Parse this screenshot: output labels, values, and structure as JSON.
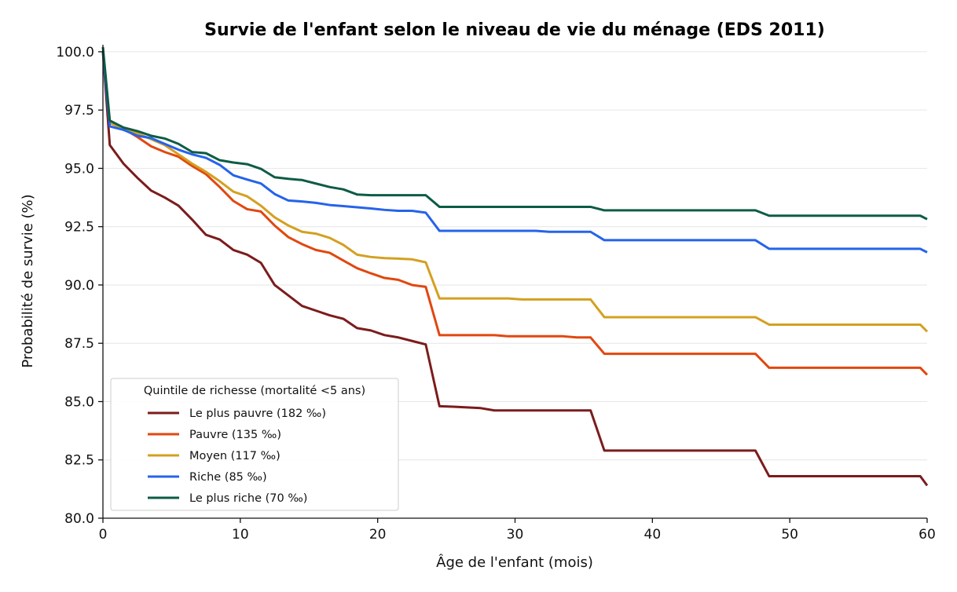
{
  "chart_data": {
    "type": "line",
    "title": "Survie de l'enfant selon le niveau de vie du ménage (EDS 2011)",
    "xlabel": "Âge de l'enfant (mois)",
    "ylabel": "Probabilité de survie (%)",
    "xlim": [
      0,
      60
    ],
    "ylim": [
      80,
      100.3
    ],
    "x_ticks": [
      0,
      10,
      20,
      30,
      40,
      50,
      60
    ],
    "x_tick_labels": [
      "0",
      "10",
      "20",
      "30",
      "40",
      "50",
      "60"
    ],
    "y_ticks": [
      80,
      82.5,
      85,
      87.5,
      90,
      92.5,
      95,
      97.5,
      100
    ],
    "y_tick_labels": [
      "80.0",
      "82.5",
      "85.0",
      "87.5",
      "90.0",
      "92.5",
      "95.0",
      "97.5",
      "100.0"
    ],
    "grid": "horizontal",
    "legend": {
      "title": "Quintile de richesse (mortalité <5 ans)",
      "placement": "lower-left"
    },
    "series": [
      {
        "name": "Le plus pauvre (182 ‰)",
        "color": "#7b1c1c",
        "points": [
          [
            0,
            100
          ],
          [
            0.5,
            96.0
          ],
          [
            1.5,
            95.2
          ],
          [
            2.5,
            94.6
          ],
          [
            3.5,
            94.05
          ],
          [
            4.5,
            93.75
          ],
          [
            5.5,
            93.4
          ],
          [
            6.5,
            92.8
          ],
          [
            7.5,
            92.15
          ],
          [
            8.5,
            91.95
          ],
          [
            9.5,
            91.5
          ],
          [
            10.5,
            91.3
          ],
          [
            11.5,
            90.95
          ],
          [
            12.5,
            90.0
          ],
          [
            13.5,
            89.55
          ],
          [
            14.5,
            89.1
          ],
          [
            15.5,
            88.9
          ],
          [
            16.5,
            88.7
          ],
          [
            17.5,
            88.55
          ],
          [
            18.5,
            88.15
          ],
          [
            19.5,
            88.05
          ],
          [
            20.5,
            87.85
          ],
          [
            21.5,
            87.75
          ],
          [
            22.5,
            87.6
          ],
          [
            23.5,
            87.45
          ],
          [
            24.5,
            84.8
          ],
          [
            25.5,
            84.78
          ],
          [
            26.5,
            84.75
          ],
          [
            27.5,
            84.72
          ],
          [
            28.5,
            84.62
          ],
          [
            29.5,
            84.62
          ],
          [
            30.5,
            84.62
          ],
          [
            35.5,
            84.62
          ],
          [
            36.5,
            82.9
          ],
          [
            47.5,
            82.9
          ],
          [
            48.5,
            81.8
          ],
          [
            59.5,
            81.8
          ],
          [
            60,
            81.4
          ]
        ]
      },
      {
        "name": "Pauvre (135 ‰)",
        "color": "#e2470f",
        "points": [
          [
            0,
            100
          ],
          [
            0.5,
            96.95
          ],
          [
            1.5,
            96.7
          ],
          [
            2.5,
            96.35
          ],
          [
            3.5,
            95.95
          ],
          [
            4.5,
            95.7
          ],
          [
            5.5,
            95.5
          ],
          [
            6.5,
            95.1
          ],
          [
            7.5,
            94.75
          ],
          [
            8.5,
            94.2
          ],
          [
            9.5,
            93.6
          ],
          [
            10.5,
            93.25
          ],
          [
            11.5,
            93.15
          ],
          [
            12.5,
            92.55
          ],
          [
            13.5,
            92.05
          ],
          [
            14.5,
            91.75
          ],
          [
            15.5,
            91.5
          ],
          [
            16.5,
            91.38
          ],
          [
            17.5,
            91.05
          ],
          [
            18.5,
            90.72
          ],
          [
            19.5,
            90.5
          ],
          [
            20.5,
            90.3
          ],
          [
            21.5,
            90.22
          ],
          [
            22.5,
            90.0
          ],
          [
            23.5,
            89.92
          ],
          [
            24.5,
            87.85
          ],
          [
            25.5,
            87.85
          ],
          [
            28.5,
            87.85
          ],
          [
            29.5,
            87.8
          ],
          [
            33.5,
            87.8
          ],
          [
            34.5,
            87.75
          ],
          [
            35.5,
            87.75
          ],
          [
            36.5,
            87.05
          ],
          [
            47.5,
            87.05
          ],
          [
            48.5,
            86.45
          ],
          [
            59.5,
            86.45
          ],
          [
            60,
            86.15
          ]
        ]
      },
      {
        "name": "Moyen (117 ‰)",
        "color": "#d4a021",
        "points": [
          [
            0,
            100
          ],
          [
            0.5,
            96.95
          ],
          [
            1.5,
            96.7
          ],
          [
            2.5,
            96.5
          ],
          [
            3.5,
            96.25
          ],
          [
            4.5,
            96.0
          ],
          [
            5.5,
            95.6
          ],
          [
            6.5,
            95.2
          ],
          [
            7.5,
            94.85
          ],
          [
            8.5,
            94.45
          ],
          [
            9.5,
            94.0
          ],
          [
            10.5,
            93.8
          ],
          [
            11.5,
            93.4
          ],
          [
            12.5,
            92.9
          ],
          [
            13.5,
            92.55
          ],
          [
            14.5,
            92.28
          ],
          [
            15.5,
            92.2
          ],
          [
            16.5,
            92.02
          ],
          [
            17.5,
            91.72
          ],
          [
            18.5,
            91.3
          ],
          [
            19.5,
            91.2
          ],
          [
            20.5,
            91.15
          ],
          [
            21.5,
            91.13
          ],
          [
            22.5,
            91.1
          ],
          [
            23.5,
            90.97
          ],
          [
            24.5,
            89.42
          ],
          [
            29.5,
            89.42
          ],
          [
            30.5,
            89.38
          ],
          [
            35.5,
            89.38
          ],
          [
            36.5,
            88.62
          ],
          [
            47.5,
            88.62
          ],
          [
            48.5,
            88.3
          ],
          [
            59.5,
            88.3
          ],
          [
            60,
            88.0
          ]
        ]
      },
      {
        "name": "Riche (85 ‰)",
        "color": "#2563eb",
        "points": [
          [
            0,
            100
          ],
          [
            0.5,
            96.8
          ],
          [
            1.5,
            96.65
          ],
          [
            2.5,
            96.4
          ],
          [
            3.5,
            96.3
          ],
          [
            4.5,
            96.05
          ],
          [
            5.5,
            95.8
          ],
          [
            6.5,
            95.6
          ],
          [
            7.5,
            95.45
          ],
          [
            8.5,
            95.15
          ],
          [
            9.5,
            94.7
          ],
          [
            10.5,
            94.52
          ],
          [
            11.5,
            94.35
          ],
          [
            12.5,
            93.9
          ],
          [
            13.5,
            93.62
          ],
          [
            14.5,
            93.58
          ],
          [
            15.5,
            93.52
          ],
          [
            16.5,
            93.43
          ],
          [
            17.5,
            93.38
          ],
          [
            18.5,
            93.33
          ],
          [
            19.5,
            93.28
          ],
          [
            20.5,
            93.22
          ],
          [
            21.5,
            93.18
          ],
          [
            22.5,
            93.18
          ],
          [
            23.5,
            93.1
          ],
          [
            24.5,
            92.32
          ],
          [
            31.5,
            92.32
          ],
          [
            32.5,
            92.28
          ],
          [
            35.5,
            92.28
          ],
          [
            36.5,
            91.92
          ],
          [
            47.5,
            91.92
          ],
          [
            48.5,
            91.55
          ],
          [
            59.5,
            91.55
          ],
          [
            60,
            91.4
          ]
        ]
      },
      {
        "name": "Le plus riche (70 ‰)",
        "color": "#0d5c45",
        "points": [
          [
            0,
            100.2
          ],
          [
            0.5,
            97.05
          ],
          [
            1.5,
            96.75
          ],
          [
            2.5,
            96.6
          ],
          [
            3.5,
            96.4
          ],
          [
            4.5,
            96.28
          ],
          [
            5.5,
            96.05
          ],
          [
            6.5,
            95.7
          ],
          [
            7.5,
            95.65
          ],
          [
            8.5,
            95.35
          ],
          [
            9.5,
            95.25
          ],
          [
            10.5,
            95.18
          ],
          [
            11.5,
            94.98
          ],
          [
            12.5,
            94.62
          ],
          [
            13.5,
            94.55
          ],
          [
            14.5,
            94.5
          ],
          [
            15.5,
            94.35
          ],
          [
            16.5,
            94.2
          ],
          [
            17.5,
            94.1
          ],
          [
            18.5,
            93.88
          ],
          [
            19.5,
            93.85
          ],
          [
            23.5,
            93.85
          ],
          [
            24.5,
            93.35
          ],
          [
            35.5,
            93.35
          ],
          [
            36.5,
            93.2
          ],
          [
            47.5,
            93.2
          ],
          [
            48.5,
            92.97
          ],
          [
            59.5,
            92.97
          ],
          [
            60,
            92.82
          ]
        ]
      }
    ]
  }
}
